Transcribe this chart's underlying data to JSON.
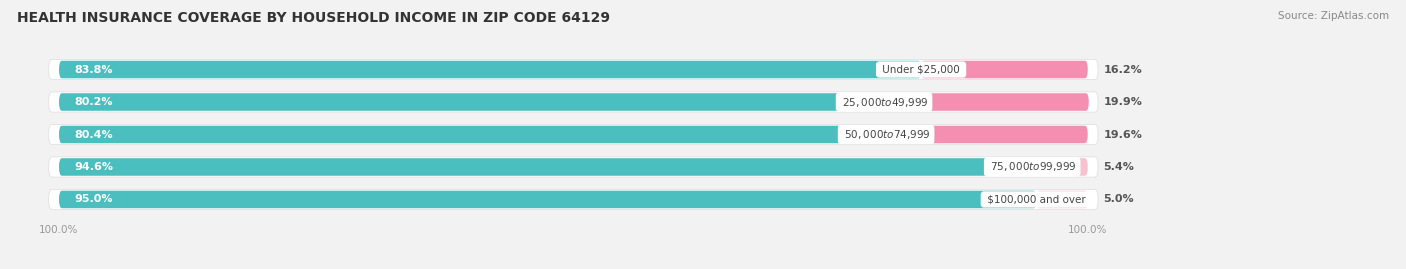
{
  "title": "HEALTH INSURANCE COVERAGE BY HOUSEHOLD INCOME IN ZIP CODE 64129",
  "source": "Source: ZipAtlas.com",
  "categories": [
    "Under $25,000",
    "$25,000 to $49,999",
    "$50,000 to $74,999",
    "$75,000 to $99,999",
    "$100,000 and over"
  ],
  "with_coverage": [
    83.8,
    80.2,
    80.4,
    94.6,
    95.0
  ],
  "without_coverage": [
    16.2,
    19.9,
    19.6,
    5.4,
    5.0
  ],
  "color_with": "#4bbfbf",
  "color_without": "#f48fb1",
  "color_without_light": "#f8c0d0",
  "bg_color": "#f2f2f2",
  "title_fontsize": 10,
  "label_fontsize": 8,
  "cat_fontsize": 7.5,
  "legend_fontsize": 8.5,
  "source_fontsize": 7.5
}
